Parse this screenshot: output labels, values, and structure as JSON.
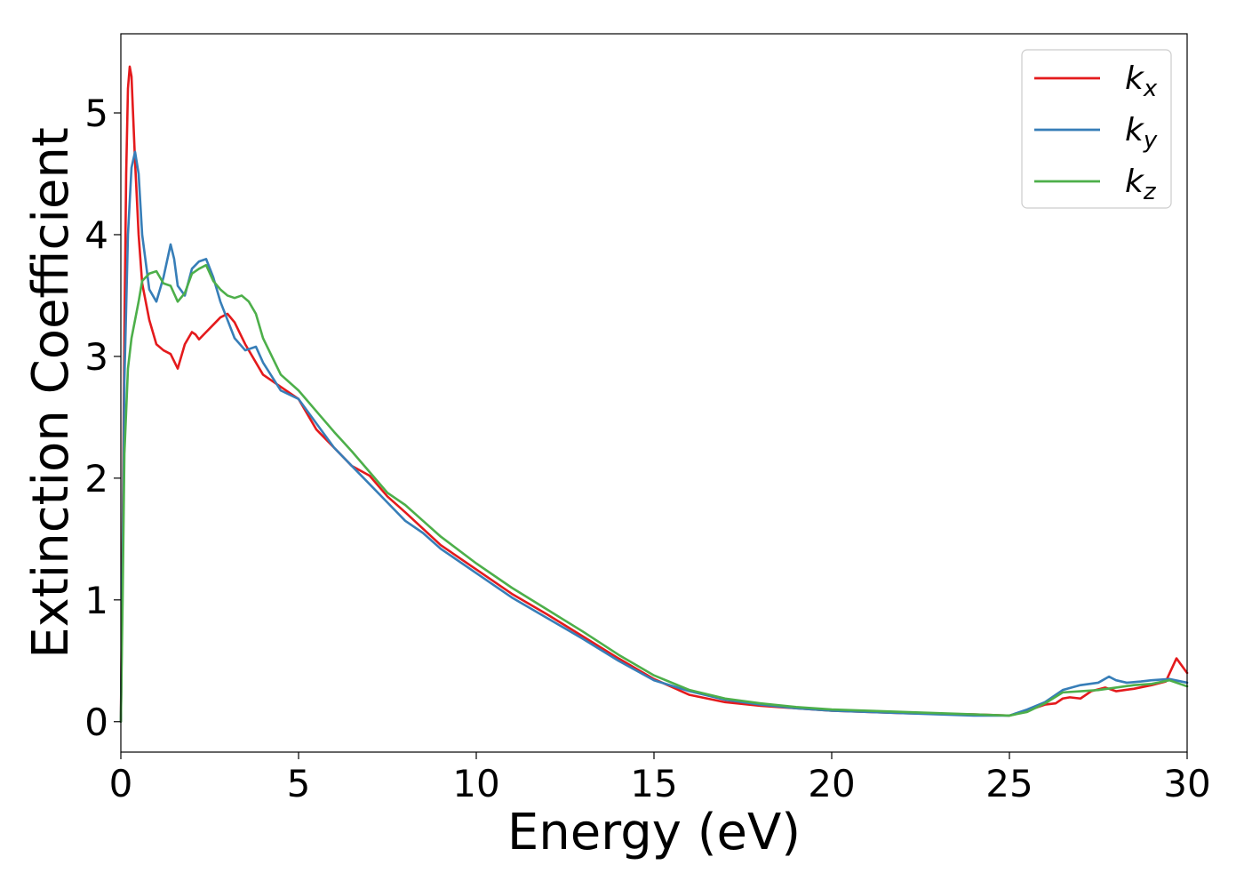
{
  "chart_data": {
    "type": "line",
    "xlabel": "Energy (eV)",
    "ylabel": "Extinction Coefficient",
    "xlim": [
      0,
      30
    ],
    "ylim": [
      -0.25,
      5.65
    ],
    "xticks": [
      0,
      5,
      10,
      15,
      20,
      25,
      30
    ],
    "yticks": [
      0,
      1,
      2,
      3,
      4,
      5
    ],
    "grid": false,
    "legend_position": "top-right",
    "series": [
      {
        "name": "k_x",
        "label_main": "k",
        "label_sub": "x",
        "color": "#e41a1c",
        "x": [
          0,
          0.05,
          0.1,
          0.15,
          0.2,
          0.25,
          0.3,
          0.4,
          0.5,
          0.6,
          0.8,
          1.0,
          1.2,
          1.4,
          1.6,
          1.8,
          2.0,
          2.1,
          2.2,
          2.4,
          2.6,
          2.8,
          3.0,
          3.2,
          3.5,
          4.0,
          4.5,
          5.0,
          5.5,
          6.0,
          6.5,
          7.0,
          7.5,
          8.0,
          9.0,
          10.0,
          11.0,
          12.0,
          13.0,
          14.0,
          15.0,
          16.0,
          17.0,
          18.0,
          19.0,
          20.0,
          22.0,
          24.0,
          25.0,
          25.5,
          26.0,
          26.3,
          26.5,
          26.7,
          27.0,
          27.3,
          27.7,
          28.0,
          28.5,
          29.0,
          29.4,
          29.7,
          30.0
        ],
        "y": [
          0.0,
          1.5,
          3.2,
          4.5,
          5.2,
          5.38,
          5.3,
          4.6,
          4.0,
          3.6,
          3.3,
          3.1,
          3.05,
          3.02,
          2.9,
          3.1,
          3.2,
          3.18,
          3.14,
          3.2,
          3.26,
          3.32,
          3.35,
          3.28,
          3.1,
          2.85,
          2.75,
          2.65,
          2.4,
          2.25,
          2.1,
          2.02,
          1.85,
          1.72,
          1.45,
          1.25,
          1.05,
          0.88,
          0.7,
          0.52,
          0.35,
          0.22,
          0.16,
          0.13,
          0.11,
          0.09,
          0.07,
          0.06,
          0.05,
          0.09,
          0.14,
          0.15,
          0.19,
          0.2,
          0.19,
          0.25,
          0.28,
          0.25,
          0.27,
          0.3,
          0.33,
          0.52,
          0.4
        ]
      },
      {
        "name": "k_y",
        "label_main": "k",
        "label_sub": "y",
        "color": "#377eb8",
        "x": [
          0,
          0.05,
          0.1,
          0.2,
          0.3,
          0.4,
          0.5,
          0.6,
          0.8,
          1.0,
          1.2,
          1.4,
          1.5,
          1.6,
          1.8,
          2.0,
          2.2,
          2.4,
          2.6,
          2.8,
          3.0,
          3.2,
          3.5,
          3.8,
          4.0,
          4.5,
          5.0,
          5.5,
          6.0,
          6.5,
          7.0,
          7.5,
          8.0,
          8.5,
          9.0,
          10.0,
          11.0,
          12.0,
          13.0,
          14.0,
          15.0,
          16.0,
          17.0,
          18.0,
          19.0,
          20.0,
          22.0,
          24.0,
          25.0,
          25.5,
          26.0,
          26.5,
          27.0,
          27.5,
          27.8,
          28.0,
          28.3,
          28.7,
          29.0,
          29.5,
          30.0
        ],
        "y": [
          0.0,
          1.3,
          2.8,
          4.0,
          4.55,
          4.68,
          4.5,
          4.0,
          3.55,
          3.45,
          3.65,
          3.92,
          3.8,
          3.58,
          3.5,
          3.72,
          3.78,
          3.8,
          3.65,
          3.45,
          3.3,
          3.15,
          3.05,
          3.08,
          2.95,
          2.72,
          2.65,
          2.45,
          2.25,
          2.1,
          1.95,
          1.8,
          1.65,
          1.55,
          1.42,
          1.22,
          1.02,
          0.85,
          0.68,
          0.5,
          0.34,
          0.25,
          0.18,
          0.14,
          0.11,
          0.09,
          0.07,
          0.05,
          0.05,
          0.1,
          0.16,
          0.26,
          0.3,
          0.32,
          0.37,
          0.34,
          0.32,
          0.33,
          0.34,
          0.35,
          0.32
        ]
      },
      {
        "name": "k_z",
        "label_main": "k",
        "label_sub": "z",
        "color": "#4daf4a",
        "x": [
          0,
          0.05,
          0.1,
          0.2,
          0.3,
          0.4,
          0.5,
          0.6,
          0.8,
          1.0,
          1.2,
          1.4,
          1.6,
          1.8,
          2.0,
          2.2,
          2.4,
          2.6,
          2.8,
          3.0,
          3.2,
          3.4,
          3.6,
          3.8,
          4.0,
          4.5,
          5.0,
          5.5,
          6.0,
          6.5,
          7.0,
          7.5,
          8.0,
          8.5,
          9.0,
          10.0,
          11.0,
          12.0,
          13.0,
          14.0,
          15.0,
          16.0,
          17.0,
          18.0,
          19.0,
          20.0,
          22.0,
          24.0,
          25.0,
          25.5,
          26.0,
          26.5,
          27.0,
          27.5,
          28.0,
          28.5,
          29.0,
          29.5,
          30.0
        ],
        "y": [
          0.0,
          1.0,
          2.2,
          2.9,
          3.15,
          3.3,
          3.45,
          3.62,
          3.68,
          3.7,
          3.6,
          3.58,
          3.45,
          3.52,
          3.68,
          3.72,
          3.75,
          3.62,
          3.55,
          3.5,
          3.48,
          3.5,
          3.45,
          3.35,
          3.15,
          2.85,
          2.72,
          2.55,
          2.38,
          2.22,
          2.05,
          1.88,
          1.78,
          1.65,
          1.52,
          1.3,
          1.1,
          0.92,
          0.74,
          0.55,
          0.38,
          0.26,
          0.19,
          0.15,
          0.12,
          0.1,
          0.08,
          0.06,
          0.05,
          0.08,
          0.15,
          0.24,
          0.25,
          0.26,
          0.28,
          0.3,
          0.31,
          0.34,
          0.29
        ]
      }
    ]
  }
}
